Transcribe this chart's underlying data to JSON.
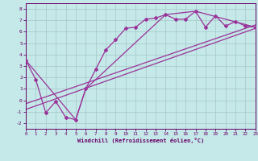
{
  "xlabel": "Windchill (Refroidissement éolien,°C)",
  "background_color": "#c5e8e8",
  "grid_color": "#aacccc",
  "line_color": "#993399",
  "xlim": [
    0,
    23
  ],
  "ylim": [
    -2.5,
    8.5
  ],
  "xticks": [
    0,
    1,
    2,
    3,
    4,
    5,
    6,
    7,
    8,
    9,
    10,
    11,
    12,
    13,
    14,
    15,
    16,
    17,
    18,
    19,
    20,
    21,
    22,
    23
  ],
  "yticks": [
    -2,
    -1,
    0,
    1,
    2,
    3,
    4,
    5,
    6,
    7,
    8
  ],
  "line1_x": [
    0,
    1,
    2,
    3,
    4,
    5,
    6,
    7,
    8,
    9,
    10,
    11,
    12,
    13,
    14,
    15,
    16,
    17,
    18,
    19,
    20,
    21,
    22,
    23
  ],
  "line1_y": [
    3.5,
    1.8,
    -1.1,
    -0.1,
    -1.5,
    -1.7,
    1.0,
    2.7,
    4.4,
    5.3,
    6.3,
    6.4,
    7.1,
    7.2,
    7.5,
    7.1,
    7.1,
    7.8,
    6.4,
    7.4,
    6.5,
    6.9,
    6.5,
    6.4
  ],
  "line2_x": [
    0,
    5,
    6,
    14,
    17,
    23
  ],
  "line2_y": [
    3.5,
    -1.7,
    1.0,
    7.5,
    7.8,
    6.4
  ],
  "line3_x": [
    0,
    23
  ],
  "line3_y": [
    -0.8,
    6.3
  ],
  "line4_x": [
    0,
    23
  ],
  "line4_y": [
    -0.3,
    6.6
  ]
}
